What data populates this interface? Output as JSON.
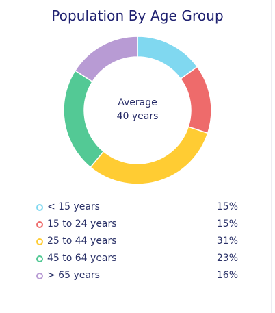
{
  "chart_data": {
    "type": "pie",
    "variant": "donut",
    "title": "Population By Age Group",
    "center_label": {
      "line1": "Average",
      "line2": "40 years"
    },
    "legend_position": "bottom",
    "categories": [
      "< 15 years",
      "15 to 24 years",
      "25 to 44 years",
      "45 to 64 years",
      "> 65 years"
    ],
    "values": [
      15,
      15,
      31,
      23,
      16
    ],
    "value_labels": [
      "15%",
      "15%",
      "31%",
      "23%",
      "16%"
    ],
    "colors": [
      "#80d8f0",
      "#ee6b6b",
      "#ffcc33",
      "#53c995",
      "#b89bd4"
    ]
  }
}
